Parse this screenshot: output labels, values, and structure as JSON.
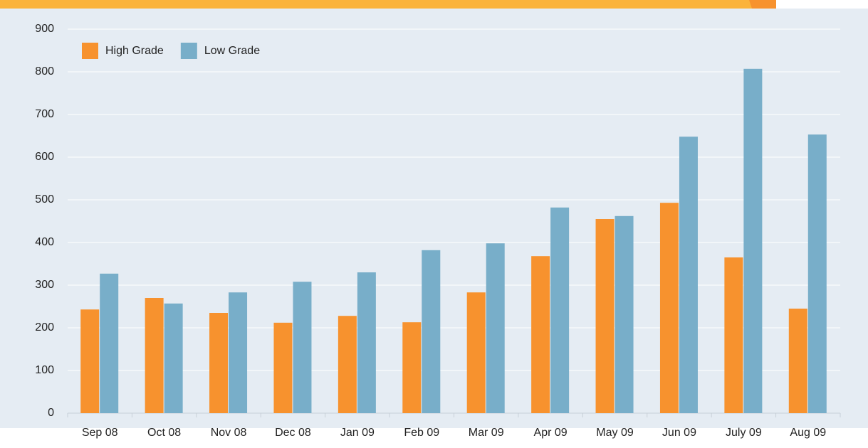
{
  "chart_data": {
    "type": "bar",
    "categories": [
      "Sep 08",
      "Oct 08",
      "Nov 08",
      "Dec 08",
      "Jan 09",
      "Feb 09",
      "Mar 09",
      "Apr 09",
      "May 09",
      "Jun 09",
      "July 09",
      "Aug 09"
    ],
    "series": [
      {
        "name": "High Grade",
        "color": "#f7922e",
        "values": [
          243,
          270,
          235,
          212,
          228,
          213,
          283,
          368,
          455,
          493,
          365,
          245
        ]
      },
      {
        "name": "Low Grade",
        "color": "#78aec9",
        "values": [
          327,
          257,
          283,
          308,
          330,
          382,
          398,
          482,
          462,
          648,
          807,
          653
        ]
      }
    ],
    "ylim": [
      0,
      900
    ],
    "yticks": [
      0,
      100,
      200,
      300,
      400,
      500,
      600,
      700,
      800,
      900
    ],
    "grid": true,
    "legend": "top-left"
  }
}
